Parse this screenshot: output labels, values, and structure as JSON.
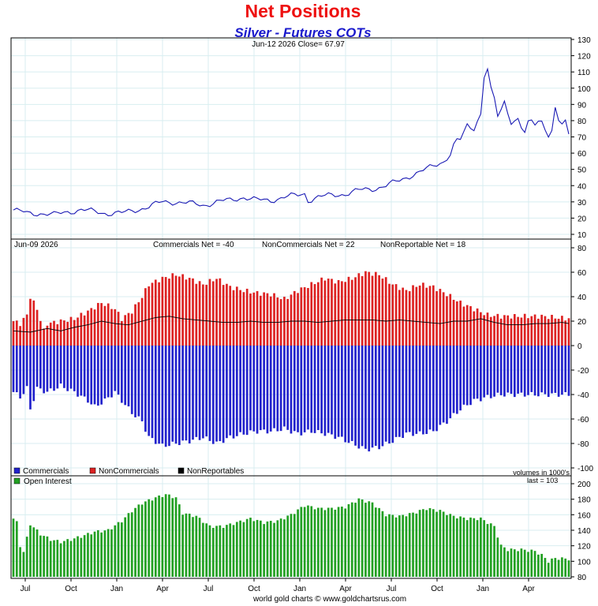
{
  "title": "Net Positions",
  "subtitle": "Silver - Futures COTs",
  "footer": "world gold charts © www.goldchartsrus.com",
  "colors": {
    "title": "#ee1111",
    "subtitle": "#1a1acc",
    "price_line": "#1a1ab4",
    "commercials": "#2222cc",
    "noncommercials": "#dd2222",
    "nonreportables": "#000000",
    "open_interest": "#22a022",
    "grid": "#d8eef0"
  },
  "chart_data": [
    {
      "type": "line",
      "name": "price",
      "header": "Jun-12  2026   Close= 67.97",
      "ylim": [
        10,
        130
      ],
      "yticks": [
        10,
        20,
        30,
        40,
        50,
        60,
        70,
        80,
        90,
        100,
        110,
        120,
        130
      ],
      "anchors_price": [
        [
          0,
          25
        ],
        [
          4,
          23
        ],
        [
          8,
          23
        ],
        [
          12,
          22
        ],
        [
          16,
          24
        ],
        [
          20,
          25
        ],
        [
          24,
          24
        ],
        [
          28,
          23
        ],
        [
          32,
          23
        ],
        [
          36,
          25
        ],
        [
          40,
          27
        ],
        [
          44,
          30
        ],
        [
          48,
          30
        ],
        [
          52,
          29
        ],
        [
          56,
          28
        ],
        [
          60,
          30
        ],
        [
          64,
          31
        ],
        [
          68,
          33
        ],
        [
          72,
          31
        ],
        [
          76,
          31
        ],
        [
          80,
          33
        ],
        [
          84,
          34
        ],
        [
          86,
          35
        ],
        [
          87,
          31
        ],
        [
          90,
          33
        ],
        [
          94,
          34
        ],
        [
          98,
          35
        ],
        [
          102,
          37
        ],
        [
          106,
          38
        ],
        [
          110,
          40
        ],
        [
          114,
          43
        ],
        [
          118,
          47
        ],
        [
          122,
          50
        ],
        [
          124,
          52
        ],
        [
          127,
          55
        ],
        [
          130,
          62
        ],
        [
          133,
          70
        ],
        [
          136,
          80
        ],
        [
          138,
          85
        ],
        [
          139,
          110
        ],
        [
          140,
          113
        ],
        [
          141,
          95
        ],
        [
          143,
          82
        ],
        [
          145,
          90
        ],
        [
          147,
          85
        ],
        [
          149,
          80
        ],
        [
          151,
          72
        ],
        [
          153,
          75
        ],
        [
          155,
          82
        ],
        [
          157,
          78
        ],
        [
          159,
          75
        ],
        [
          160,
          84
        ],
        [
          161,
          78
        ],
        [
          163,
          75
        ],
        [
          164,
          68
        ]
      ]
    },
    {
      "type": "bar",
      "name": "net positions",
      "header_date": "Jun-09  2026",
      "header_values": {
        "commercials": "Commercials Net = -40",
        "noncommercials": "NonCommercials Net = 22",
        "nonreportables": "NonReportable Net = 18"
      },
      "ylim": [
        -100,
        80
      ],
      "yticks": [
        -100,
        -80,
        -60,
        -40,
        -20,
        0,
        20,
        40,
        60,
        80
      ],
      "series": [
        {
          "name": "Commercials",
          "anchors": [
            [
              0,
              -38
            ],
            [
              2,
              -42
            ],
            [
              4,
              -35
            ],
            [
              5,
              -52
            ],
            [
              7,
              -35
            ],
            [
              10,
              -38
            ],
            [
              14,
              -33
            ],
            [
              18,
              -38
            ],
            [
              22,
              -45
            ],
            [
              24,
              -50
            ],
            [
              27,
              -45
            ],
            [
              30,
              -38
            ],
            [
              32,
              -45
            ],
            [
              35,
              -55
            ],
            [
              38,
              -62
            ],
            [
              40,
              -75
            ],
            [
              44,
              -82
            ],
            [
              48,
              -80
            ],
            [
              52,
              -78
            ],
            [
              56,
              -75
            ],
            [
              60,
              -80
            ],
            [
              64,
              -75
            ],
            [
              68,
              -72
            ],
            [
              72,
              -70
            ],
            [
              76,
              -70
            ],
            [
              80,
              -68
            ],
            [
              84,
              -72
            ],
            [
              88,
              -70
            ],
            [
              92,
              -72
            ],
            [
              96,
              -75
            ],
            [
              100,
              -80
            ],
            [
              104,
              -85
            ],
            [
              108,
              -83
            ],
            [
              112,
              -78
            ],
            [
              116,
              -72
            ],
            [
              120,
              -72
            ],
            [
              124,
              -70
            ],
            [
              128,
              -62
            ],
            [
              132,
              -52
            ],
            [
              136,
              -45
            ],
            [
              140,
              -42
            ],
            [
              144,
              -40
            ],
            [
              148,
              -40
            ],
            [
              152,
              -40
            ],
            [
              156,
              -40
            ],
            [
              160,
              -40
            ],
            [
              164,
              -40
            ]
          ]
        },
        {
          "name": "NonCommercials",
          "anchors": [
            [
              0,
              20
            ],
            [
              2,
              18
            ],
            [
              4,
              25
            ],
            [
              5,
              40
            ],
            [
              7,
              30
            ],
            [
              9,
              12
            ],
            [
              10,
              18
            ],
            [
              14,
              20
            ],
            [
              18,
              22
            ],
            [
              22,
              28
            ],
            [
              26,
              35
            ],
            [
              30,
              30
            ],
            [
              32,
              22
            ],
            [
              35,
              28
            ],
            [
              38,
              40
            ],
            [
              40,
              50
            ],
            [
              44,
              55
            ],
            [
              48,
              58
            ],
            [
              52,
              55
            ],
            [
              56,
              50
            ],
            [
              60,
              55
            ],
            [
              64,
              48
            ],
            [
              68,
              45
            ],
            [
              72,
              43
            ],
            [
              76,
              42
            ],
            [
              80,
              38
            ],
            [
              84,
              45
            ],
            [
              88,
              50
            ],
            [
              92,
              55
            ],
            [
              96,
              52
            ],
            [
              100,
              55
            ],
            [
              104,
              60
            ],
            [
              108,
              58
            ],
            [
              112,
              50
            ],
            [
              116,
              45
            ],
            [
              120,
              50
            ],
            [
              124,
              48
            ],
            [
              128,
              42
            ],
            [
              132,
              35
            ],
            [
              136,
              30
            ],
            [
              140,
              25
            ],
            [
              144,
              24
            ],
            [
              148,
              24
            ],
            [
              152,
              24
            ],
            [
              156,
              24
            ],
            [
              160,
              23
            ],
            [
              164,
              22
            ]
          ]
        },
        {
          "name": "NonReportables",
          "anchors": [
            [
              0,
              12
            ],
            [
              5,
              11
            ],
            [
              10,
              14
            ],
            [
              14,
              12
            ],
            [
              18,
              15
            ],
            [
              22,
              17
            ],
            [
              26,
              20
            ],
            [
              30,
              18
            ],
            [
              34,
              17
            ],
            [
              38,
              20
            ],
            [
              42,
              23
            ],
            [
              46,
              24
            ],
            [
              50,
              22
            ],
            [
              54,
              21
            ],
            [
              58,
              20
            ],
            [
              62,
              19
            ],
            [
              66,
              19
            ],
            [
              70,
              20
            ],
            [
              74,
              19
            ],
            [
              78,
              19
            ],
            [
              82,
              20
            ],
            [
              86,
              20
            ],
            [
              90,
              19
            ],
            [
              94,
              20
            ],
            [
              98,
              21
            ],
            [
              102,
              21
            ],
            [
              106,
              21
            ],
            [
              110,
              20
            ],
            [
              114,
              21
            ],
            [
              118,
              20
            ],
            [
              122,
              19
            ],
            [
              126,
              18
            ],
            [
              130,
              20
            ],
            [
              134,
              20
            ],
            [
              138,
              22
            ],
            [
              142,
              19
            ],
            [
              146,
              17
            ],
            [
              150,
              17
            ],
            [
              154,
              18
            ],
            [
              158,
              18
            ],
            [
              162,
              19
            ],
            [
              164,
              18
            ]
          ]
        }
      ],
      "legend": [
        "Commercials",
        "NonCommercials",
        "NonReportables"
      ],
      "note": "volumes in 1000's"
    },
    {
      "type": "bar",
      "name": "open interest",
      "legend": [
        "Open Interest"
      ],
      "last_label": "last = 103",
      "ylim": [
        80,
        200
      ],
      "yticks": [
        80,
        100,
        120,
        140,
        160,
        180,
        200
      ],
      "anchors": [
        [
          0,
          155
        ],
        [
          1,
          150
        ],
        [
          2,
          120
        ],
        [
          3,
          112
        ],
        [
          5,
          148
        ],
        [
          8,
          135
        ],
        [
          11,
          128
        ],
        [
          14,
          125
        ],
        [
          17,
          128
        ],
        [
          20,
          132
        ],
        [
          24,
          138
        ],
        [
          28,
          140
        ],
        [
          32,
          152
        ],
        [
          35,
          165
        ],
        [
          38,
          175
        ],
        [
          42,
          182
        ],
        [
          45,
          186
        ],
        [
          48,
          182
        ],
        [
          50,
          162
        ],
        [
          54,
          158
        ],
        [
          58,
          145
        ],
        [
          62,
          145
        ],
        [
          66,
          150
        ],
        [
          70,
          155
        ],
        [
          74,
          150
        ],
        [
          78,
          152
        ],
        [
          82,
          160
        ],
        [
          86,
          172
        ],
        [
          90,
          168
        ],
        [
          94,
          168
        ],
        [
          98,
          170
        ],
        [
          102,
          180
        ],
        [
          106,
          175
        ],
        [
          110,
          160
        ],
        [
          114,
          158
        ],
        [
          118,
          162
        ],
        [
          122,
          168
        ],
        [
          126,
          165
        ],
        [
          130,
          158
        ],
        [
          134,
          155
        ],
        [
          138,
          155
        ],
        [
          142,
          145
        ],
        [
          144,
          120
        ],
        [
          146,
          115
        ],
        [
          150,
          115
        ],
        [
          154,
          113
        ],
        [
          156,
          108
        ],
        [
          158,
          100
        ],
        [
          160,
          104
        ],
        [
          164,
          103
        ]
      ]
    }
  ],
  "x_axis_labels": [
    "Jul",
    "Oct",
    "Jan",
    "Apr",
    "Jul",
    "Oct",
    "Jan",
    "Apr",
    "Jul",
    "Oct",
    "Jan",
    "Apr"
  ]
}
